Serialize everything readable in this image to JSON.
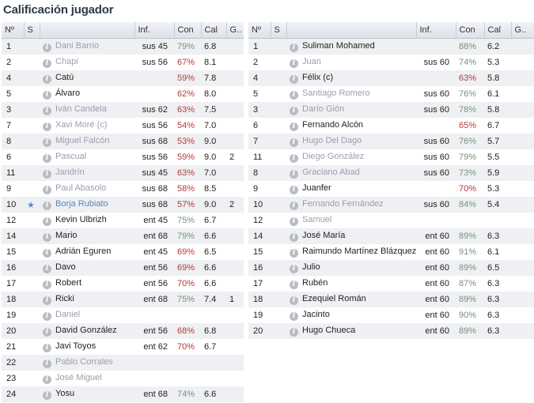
{
  "title": "Calificación jugador",
  "left": {
    "headers": {
      "num": "Nº",
      "s": "S",
      "inf": "Inf.",
      "con": "Con",
      "cal": "Cal",
      "g": "G.."
    },
    "rows": [
      {
        "num": "1",
        "star": false,
        "name": "Dani Barrio",
        "dim": true,
        "blue": false,
        "inf": "sus 45",
        "con": "79%",
        "conc": "green",
        "cal": "6.8",
        "g": ""
      },
      {
        "num": "2",
        "star": false,
        "name": "Chapi",
        "dim": true,
        "blue": false,
        "inf": "sus 56",
        "con": "67%",
        "conc": "red",
        "cal": "8.1",
        "g": ""
      },
      {
        "num": "4",
        "star": false,
        "name": "Catú",
        "dim": false,
        "blue": false,
        "inf": "",
        "con": "59%",
        "conc": "red",
        "cal": "7.8",
        "g": ""
      },
      {
        "num": "5",
        "star": false,
        "name": "Álvaro",
        "dim": false,
        "blue": false,
        "inf": "",
        "con": "62%",
        "conc": "red",
        "cal": "8.0",
        "g": ""
      },
      {
        "num": "3",
        "star": false,
        "name": "Iván Candela",
        "dim": true,
        "blue": false,
        "inf": "sus 62",
        "con": "63%",
        "conc": "red",
        "cal": "7.5",
        "g": ""
      },
      {
        "num": "7",
        "star": false,
        "name": "Xavi Moré (c)",
        "dim": true,
        "blue": false,
        "inf": "sus 56",
        "con": "54%",
        "conc": "red",
        "cal": "7.0",
        "g": ""
      },
      {
        "num": "8",
        "star": false,
        "name": "Miguel Falcón",
        "dim": true,
        "blue": false,
        "inf": "sus 68",
        "con": "53%",
        "conc": "red",
        "cal": "9.0",
        "g": ""
      },
      {
        "num": "6",
        "star": false,
        "name": "Pascual",
        "dim": true,
        "blue": false,
        "inf": "sus 56",
        "con": "59%",
        "conc": "red",
        "cal": "9.0",
        "g": "2"
      },
      {
        "num": "11",
        "star": false,
        "name": "Jandrín",
        "dim": true,
        "blue": false,
        "inf": "sus 45",
        "con": "63%",
        "conc": "red",
        "cal": "7.0",
        "g": ""
      },
      {
        "num": "9",
        "star": false,
        "name": "Paul Abasolo",
        "dim": true,
        "blue": false,
        "inf": "sus 68",
        "con": "58%",
        "conc": "red",
        "cal": "8.5",
        "g": ""
      },
      {
        "num": "10",
        "star": true,
        "name": "Borja Rubiato",
        "dim": false,
        "blue": true,
        "inf": "sus 68",
        "con": "57%",
        "conc": "red",
        "cal": "9.0",
        "g": "2"
      },
      {
        "num": "12",
        "star": false,
        "name": "Kevin Ulbrizh",
        "dim": false,
        "blue": false,
        "inf": "ent 45",
        "con": "75%",
        "conc": "green",
        "cal": "6.7",
        "g": ""
      },
      {
        "num": "14",
        "star": false,
        "name": "Mario",
        "dim": false,
        "blue": false,
        "inf": "ent 68",
        "con": "79%",
        "conc": "green",
        "cal": "6.6",
        "g": ""
      },
      {
        "num": "15",
        "star": false,
        "name": "Adrián Eguren",
        "dim": false,
        "blue": false,
        "inf": "ent 45",
        "con": "69%",
        "conc": "red",
        "cal": "6.5",
        "g": ""
      },
      {
        "num": "16",
        "star": false,
        "name": "Davo",
        "dim": false,
        "blue": false,
        "inf": "ent 56",
        "con": "69%",
        "conc": "red",
        "cal": "6.6",
        "g": ""
      },
      {
        "num": "17",
        "star": false,
        "name": "Robert",
        "dim": false,
        "blue": false,
        "inf": "ent 56",
        "con": "70%",
        "conc": "red",
        "cal": "6.6",
        "g": ""
      },
      {
        "num": "18",
        "star": false,
        "name": "Ricki",
        "dim": false,
        "blue": false,
        "inf": "ent 68",
        "con": "75%",
        "conc": "green",
        "cal": "7.4",
        "g": "1"
      },
      {
        "num": "19",
        "star": false,
        "name": "Daniel",
        "dim": true,
        "blue": false,
        "inf": "",
        "con": "",
        "conc": "green",
        "cal": "",
        "g": ""
      },
      {
        "num": "20",
        "star": false,
        "name": "David González",
        "dim": false,
        "blue": false,
        "inf": "ent 56",
        "con": "68%",
        "conc": "red",
        "cal": "6.8",
        "g": ""
      },
      {
        "num": "21",
        "star": false,
        "name": "Javi Toyos",
        "dim": false,
        "blue": false,
        "inf": "ent 62",
        "con": "70%",
        "conc": "red",
        "cal": "6.7",
        "g": ""
      },
      {
        "num": "22",
        "star": false,
        "name": "Pablo Corrales",
        "dim": true,
        "blue": false,
        "inf": "",
        "con": "",
        "conc": "green",
        "cal": "",
        "g": ""
      },
      {
        "num": "23",
        "star": false,
        "name": "José Miguel",
        "dim": true,
        "blue": false,
        "inf": "",
        "con": "",
        "conc": "green",
        "cal": "",
        "g": ""
      },
      {
        "num": "24",
        "star": false,
        "name": "Yosu",
        "dim": false,
        "blue": false,
        "inf": "ent 68",
        "con": "74%",
        "conc": "green",
        "cal": "6.6",
        "g": ""
      }
    ]
  },
  "right": {
    "headers": {
      "num": "Nº",
      "s": "S",
      "inf": "Inf.",
      "con": "Con",
      "cal": "Cal",
      "g": "G.."
    },
    "rows": [
      {
        "num": "1",
        "star": false,
        "name": "Suliman Mohamed",
        "dim": false,
        "blue": false,
        "inf": "",
        "con": "88%",
        "conc": "green",
        "cal": "6.2",
        "g": ""
      },
      {
        "num": "2",
        "star": false,
        "name": "Juan",
        "dim": true,
        "blue": false,
        "inf": "sus 60",
        "con": "74%",
        "conc": "green",
        "cal": "5.3",
        "g": ""
      },
      {
        "num": "4",
        "star": false,
        "name": "Félix (c)",
        "dim": false,
        "blue": false,
        "inf": "",
        "con": "63%",
        "conc": "red",
        "cal": "5.8",
        "g": ""
      },
      {
        "num": "5",
        "star": false,
        "name": "Santiago Romero",
        "dim": true,
        "blue": false,
        "inf": "sus 60",
        "con": "76%",
        "conc": "green",
        "cal": "6.1",
        "g": ""
      },
      {
        "num": "3",
        "star": false,
        "name": "Darío Gión",
        "dim": true,
        "blue": false,
        "inf": "sus 60",
        "con": "78%",
        "conc": "green",
        "cal": "5.8",
        "g": ""
      },
      {
        "num": "6",
        "star": false,
        "name": "Fernando Alcón",
        "dim": false,
        "blue": false,
        "inf": "",
        "con": "65%",
        "conc": "red",
        "cal": "6.7",
        "g": ""
      },
      {
        "num": "7",
        "star": false,
        "name": "Hugo Del Dago",
        "dim": true,
        "blue": false,
        "inf": "sus 60",
        "con": "76%",
        "conc": "green",
        "cal": "5.7",
        "g": ""
      },
      {
        "num": "11",
        "star": false,
        "name": "Diego González",
        "dim": true,
        "blue": false,
        "inf": "sus 60",
        "con": "79%",
        "conc": "green",
        "cal": "5.5",
        "g": ""
      },
      {
        "num": "8",
        "star": false,
        "name": "Graciano Abad",
        "dim": true,
        "blue": false,
        "inf": "sus 60",
        "con": "73%",
        "conc": "green",
        "cal": "5.9",
        "g": ""
      },
      {
        "num": "9",
        "star": false,
        "name": "Juanfer",
        "dim": false,
        "blue": false,
        "inf": "",
        "con": "70%",
        "conc": "red",
        "cal": "5.3",
        "g": ""
      },
      {
        "num": "10",
        "star": false,
        "name": "Fernando Fernández",
        "dim": true,
        "blue": false,
        "inf": "sus 60",
        "con": "84%",
        "conc": "green",
        "cal": "5.4",
        "g": ""
      },
      {
        "num": "12",
        "star": false,
        "name": "Samuel",
        "dim": true,
        "blue": false,
        "inf": "",
        "con": "",
        "conc": "green",
        "cal": "",
        "g": ""
      },
      {
        "num": "14",
        "star": false,
        "name": "José María",
        "dim": false,
        "blue": false,
        "inf": "ent 60",
        "con": "89%",
        "conc": "green",
        "cal": "6.3",
        "g": ""
      },
      {
        "num": "15",
        "star": false,
        "name": "Raimundo Martínez Blázquez",
        "dim": false,
        "blue": false,
        "inf": "ent 60",
        "con": "91%",
        "conc": "green",
        "cal": "6.1",
        "g": ""
      },
      {
        "num": "16",
        "star": false,
        "name": "Julio",
        "dim": false,
        "blue": false,
        "inf": "ent 60",
        "con": "89%",
        "conc": "green",
        "cal": "6.5",
        "g": ""
      },
      {
        "num": "17",
        "star": false,
        "name": "Rubén",
        "dim": false,
        "blue": false,
        "inf": "ent 60",
        "con": "87%",
        "conc": "green",
        "cal": "6.3",
        "g": ""
      },
      {
        "num": "18",
        "star": false,
        "name": "Ezequiel Román",
        "dim": false,
        "blue": false,
        "inf": "ent 60",
        "con": "89%",
        "conc": "green",
        "cal": "6.3",
        "g": ""
      },
      {
        "num": "19",
        "star": false,
        "name": "Jacinto",
        "dim": false,
        "blue": false,
        "inf": "ent 60",
        "con": "90%",
        "conc": "green",
        "cal": "6.3",
        "g": ""
      },
      {
        "num": "20",
        "star": false,
        "name": "Hugo Chueca",
        "dim": false,
        "blue": false,
        "inf": "ent 60",
        "con": "89%",
        "conc": "green",
        "cal": "6.3",
        "g": ""
      }
    ]
  },
  "colors": {
    "con_green": "#789080",
    "con_red": "#b33a3a",
    "dim": "#9a9fa6",
    "blue": "#5a86b8"
  },
  "icons": {
    "info": "info-icon",
    "star": "star-icon"
  }
}
